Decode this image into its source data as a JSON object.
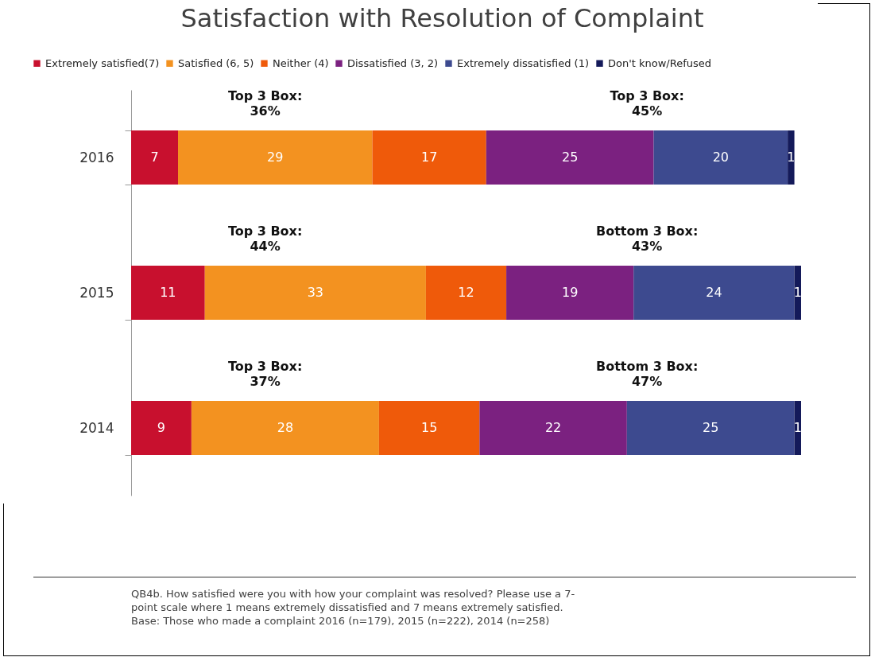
{
  "chart_data": {
    "type": "bar",
    "orientation": "horizontal",
    "stacked": true,
    "data_labels": true,
    "legend": "top",
    "title": "Satisfaction with Resolution of Complaint",
    "categories": [
      "2016",
      "2015",
      "2014"
    ],
    "series": [
      {
        "name": "Extremely satisfied(7)",
        "color": "#c8102e",
        "values": [
          7,
          11,
          9
        ]
      },
      {
        "name": "Satisfied (6, 5)",
        "color": "#f39220",
        "values": [
          29,
          33,
          28
        ]
      },
      {
        "name": "Neither (4)",
        "color": "#ef5a0a",
        "values": [
          17,
          12,
          15
        ]
      },
      {
        "name": "Dissatisfied (3, 2)",
        "color": "#7b2180",
        "values": [
          25,
          19,
          22
        ]
      },
      {
        "name": "Extremely dissatisfied (1)",
        "color": "#3d4a8f",
        "values": [
          20,
          24,
          25
        ]
      },
      {
        "name": "Don't know/Refused",
        "color": "#141a5a",
        "values": [
          1,
          1,
          1
        ]
      }
    ],
    "annotations": [
      "Top 3 Box:\n36%",
      "Top 3 Box:\n45%",
      "Top 3 Box:\n44%",
      "Bottom 3 Box:\n43%",
      "Top 3 Box:\n37%",
      "Bottom 3 Box:\n47%",
      "QB4b. How satisfied were you with how your complaint was resolved? Please use a 7-\npoint scale where 1 means extremely dissatisfied and 7 means extremely satisfied.\nBase: Those who made a complaint 2016 (n=179), 2015 (n=222), 2014 (n=258)"
    ]
  }
}
